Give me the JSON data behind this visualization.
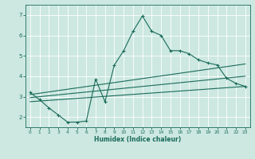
{
  "xlabel": "Humidex (Indice chaleur)",
  "bg_color": "#cce8e0",
  "grid_color": "#ffffff",
  "line_color": "#1a6b5a",
  "xlim": [
    -0.5,
    23.5
  ],
  "ylim": [
    1.5,
    7.5
  ],
  "yticks": [
    2,
    3,
    4,
    5,
    6,
    7
  ],
  "xticks": [
    0,
    1,
    2,
    3,
    4,
    5,
    6,
    7,
    8,
    9,
    10,
    11,
    12,
    13,
    14,
    15,
    16,
    17,
    18,
    19,
    20,
    21,
    22,
    23
  ],
  "line1_x": [
    0,
    1,
    2,
    3,
    4,
    5,
    6,
    7,
    8,
    9,
    10,
    11,
    12,
    13,
    14,
    15,
    16,
    17,
    18,
    19,
    20,
    21,
    22,
    23
  ],
  "line1_y": [
    3.2,
    2.85,
    2.45,
    2.1,
    1.75,
    1.75,
    1.8,
    3.85,
    2.75,
    4.55,
    5.25,
    6.2,
    6.95,
    6.2,
    6.0,
    5.25,
    5.25,
    5.1,
    4.8,
    4.65,
    4.55,
    3.9,
    3.65,
    3.5
  ],
  "line2_x": [
    0,
    23
  ],
  "line2_y": [
    3.1,
    4.6
  ],
  "line3_x": [
    0,
    23
  ],
  "line3_y": [
    2.95,
    4.0
  ],
  "line4_x": [
    0,
    23
  ],
  "line4_y": [
    2.75,
    3.5
  ]
}
